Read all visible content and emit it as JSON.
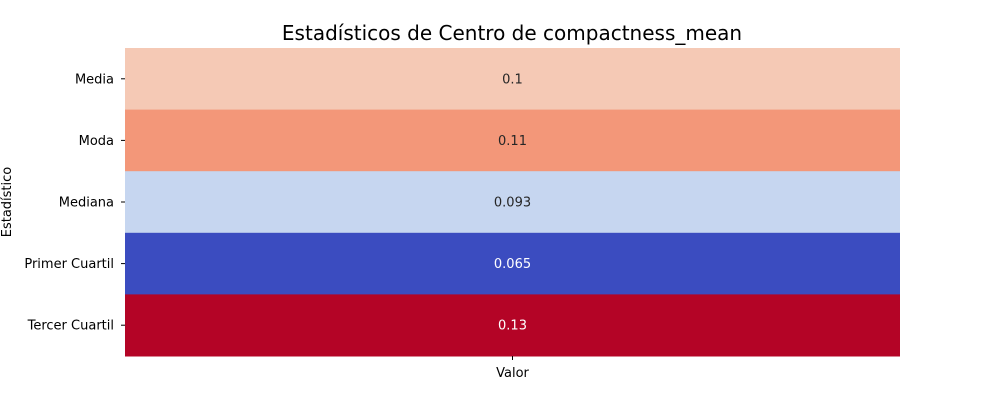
{
  "chart_data": {
    "type": "heatmap",
    "title": "Estadísticos de Centro de compactness_mean",
    "xlabel": "",
    "ylabel": "Estadístico",
    "x_categories": [
      "Valor"
    ],
    "rows": [
      {
        "label": "Media",
        "value": 0.1,
        "display": "0.1",
        "color": "#f5c9b5",
        "text_color": "#262626"
      },
      {
        "label": "Moda",
        "value": 0.11,
        "display": "0.11",
        "color": "#f39779",
        "text_color": "#262626"
      },
      {
        "label": "Mediana",
        "value": 0.093,
        "display": "0.093",
        "color": "#c6d6f0",
        "text_color": "#262626"
      },
      {
        "label": "Primer Cuartil",
        "value": 0.065,
        "display": "0.065",
        "color": "#3b4cc0",
        "text_color": "#ffffff"
      },
      {
        "label": "Tercer Cuartil",
        "value": 0.13,
        "display": "0.13",
        "color": "#b40426",
        "text_color": "#ffffff"
      }
    ],
    "colormap": "coolwarm",
    "colorbar": false,
    "grid": false
  }
}
